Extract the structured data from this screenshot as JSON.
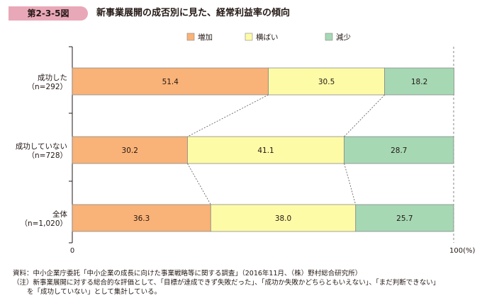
{
  "figure": {
    "number": "第2-3-5図",
    "title": "新事業展開の成否別に見た、経常利益率の傾向"
  },
  "chart_data": {
    "type": "bar",
    "orientation": "horizontal",
    "stacked": true,
    "percent": true,
    "categories": [
      "成功した（n=292）",
      "成功していない（n=728）",
      "全体（n=1,020）"
    ],
    "category_lines": [
      [
        "成功した",
        "（n=292）"
      ],
      [
        "成功していない",
        "（n=728）"
      ],
      [
        "全体",
        "（n=1,020）"
      ]
    ],
    "series": [
      {
        "name": "増加",
        "values": [
          51.4,
          30.2,
          36.3
        ],
        "color": "#f9b277"
      },
      {
        "name": "横ばい",
        "values": [
          30.5,
          41.1,
          38.0
        ],
        "color": "#fefba7"
      },
      {
        "name": "減少",
        "values": [
          18.2,
          28.7,
          25.7
        ],
        "color": "#a6d8b4"
      }
    ],
    "value_labels": [
      [
        "51.4",
        "30.5",
        "18.2"
      ],
      [
        "30.2",
        "41.1",
        "28.7"
      ],
      [
        "36.3",
        "38.0",
        "25.7"
      ]
    ],
    "xlim": [
      0,
      100
    ],
    "x_ticks": [
      "0",
      "100(%)"
    ],
    "legend_position": "top-right",
    "grid": false,
    "connector_lines": true
  },
  "footnotes": {
    "source": "資料：中小企業庁委託「中小企業の成長に向けた事業戦略等に関する調査」（2016年11月、（株）野村総合研究所）",
    "note1": "（注）新事業展開に対する総合的な評価として、「目標が達成できず失敗だった」、「成功か失敗かどちらともいえない」、「まだ判断できない」",
    "note2": "を「成功していない」として集計している。"
  }
}
